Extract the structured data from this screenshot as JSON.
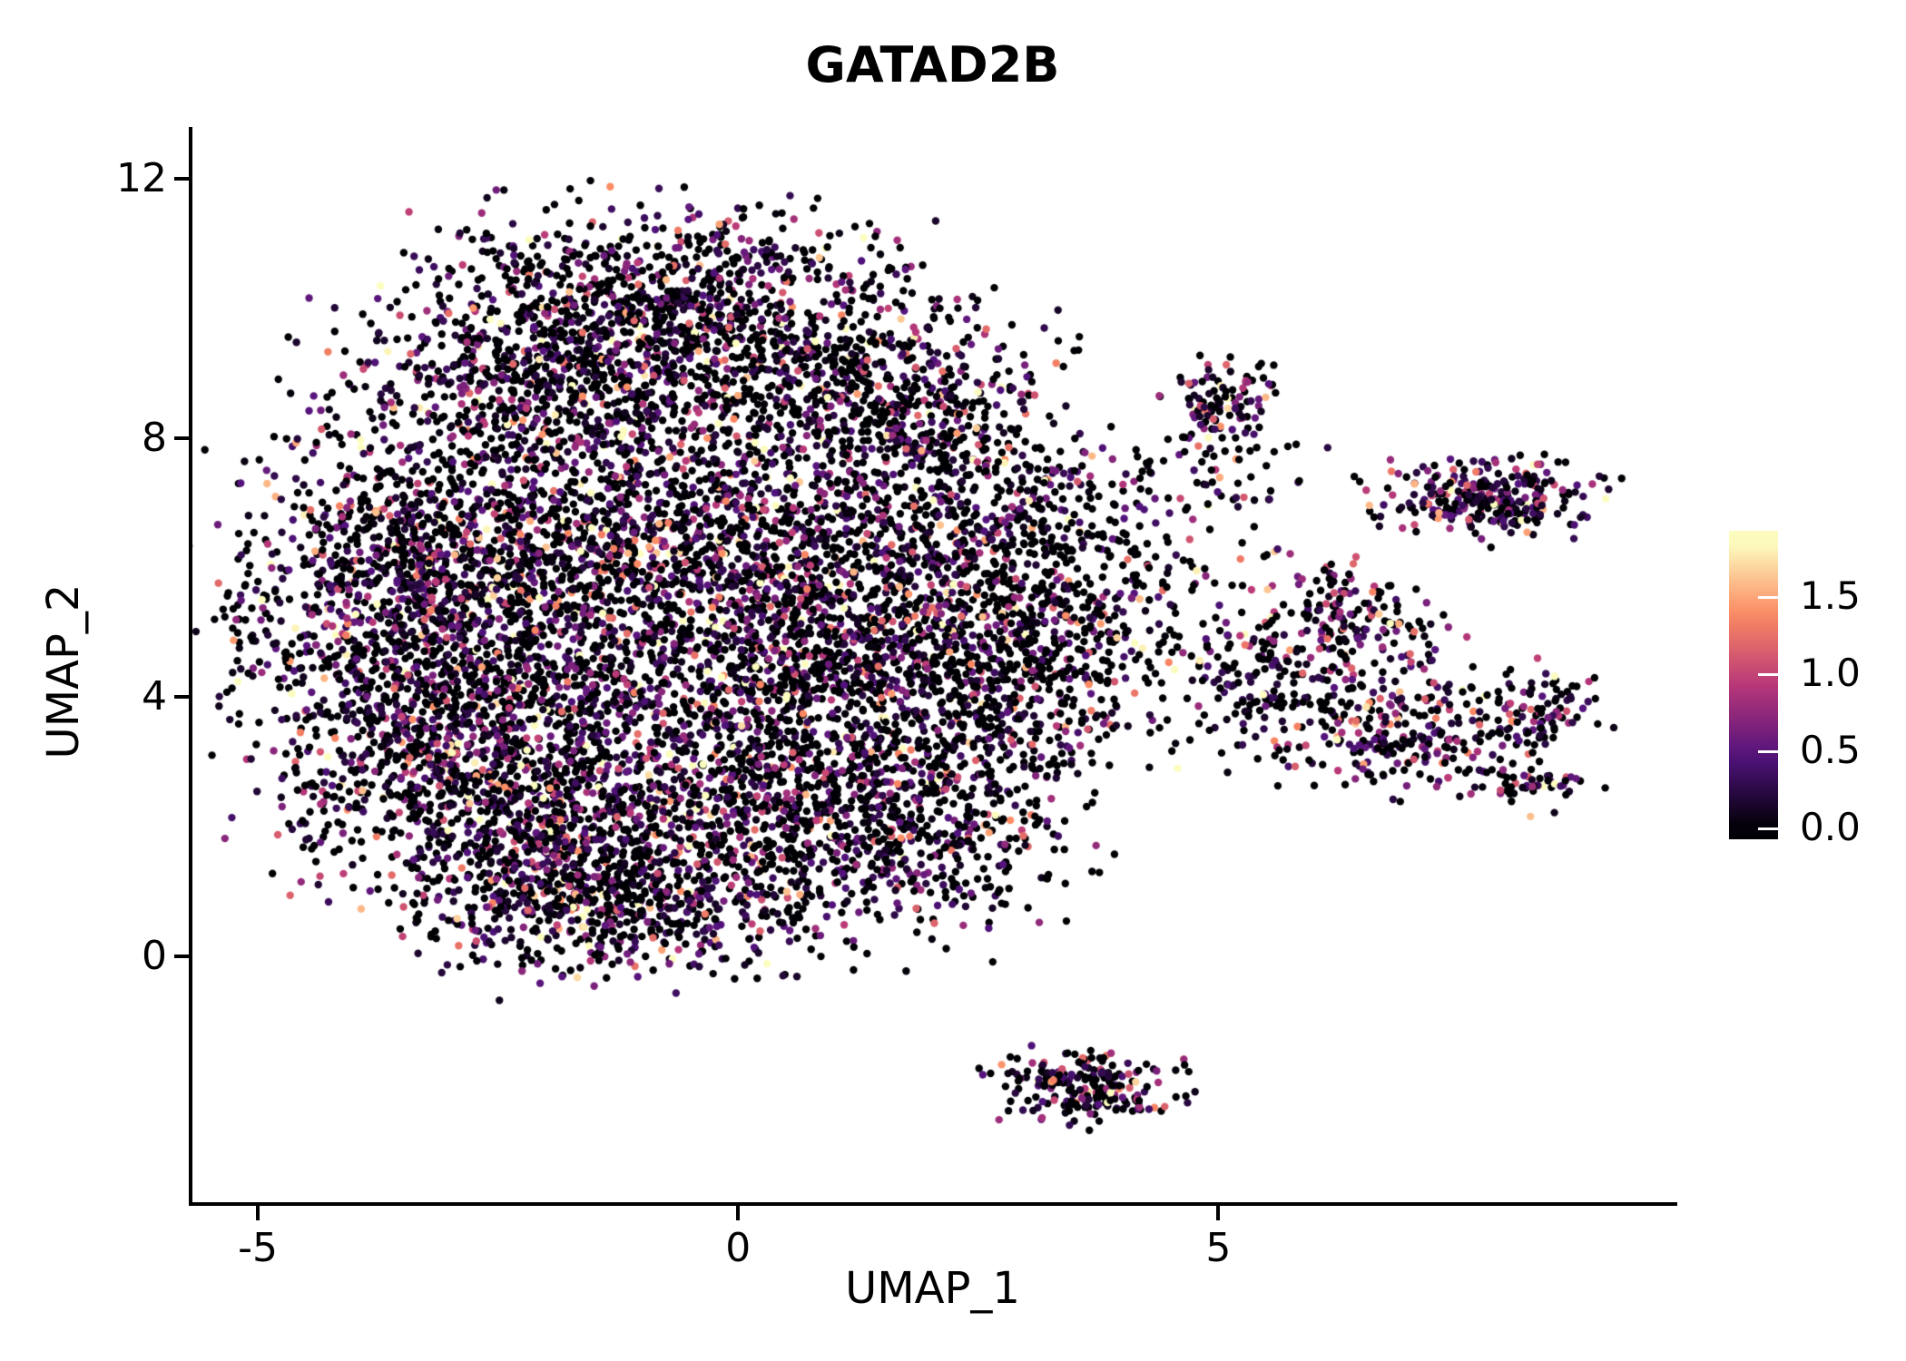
{
  "chart_data": {
    "type": "scatter",
    "title": "GATAD2B",
    "xlabel": "UMAP_1",
    "ylabel": "UMAP_2",
    "xlim": [
      -5.7,
      9.75
    ],
    "ylim": [
      -3.8,
      12.8
    ],
    "grid": false,
    "legend_position": "right",
    "x_ticks": [
      {
        "value": -5,
        "label": "-5"
      },
      {
        "value": 0,
        "label": "0"
      },
      {
        "value": 5,
        "label": "5"
      }
    ],
    "y_ticks": [
      {
        "value": 0,
        "label": "0"
      },
      {
        "value": 4,
        "label": "4"
      },
      {
        "value": 8,
        "label": "8"
      },
      {
        "value": 12,
        "label": "12"
      }
    ],
    "point_radius_px": 4.2,
    "seed": 7,
    "colormap": {
      "name": "magma",
      "stops": [
        {
          "t": 0.0,
          "color": "#000004"
        },
        {
          "t": 0.25,
          "color": "#51127c"
        },
        {
          "t": 0.5,
          "color": "#b73779"
        },
        {
          "t": 0.75,
          "color": "#fc8961"
        },
        {
          "t": 1.0,
          "color": "#fcfdbf"
        }
      ]
    },
    "colorbar": {
      "vmin": -0.07,
      "vmax": 1.93,
      "value_max": 1.85,
      "ticks": [
        {
          "value": 1.5,
          "label": "1.5"
        },
        {
          "value": 1.0,
          "label": "1.0"
        },
        {
          "value": 0.5,
          "label": "0.5"
        },
        {
          "value": 0.0,
          "label": "0.0"
        }
      ]
    },
    "expression": {
      "default_zero_frac": 0.48,
      "exp_scale": 0.55,
      "vmax": 1.85
    },
    "clusters": [
      {
        "name": "top-lobe-a",
        "x": -0.6,
        "y": 10.3,
        "sx": 1.1,
        "sy": 0.65,
        "n": 650,
        "zero_frac": 0.52
      },
      {
        "name": "top-lobe-b",
        "x": -2.1,
        "y": 9.0,
        "sx": 1.0,
        "sy": 0.8,
        "n": 750,
        "zero_frac": 0.45
      },
      {
        "name": "top-lobe-c",
        "x": 0.6,
        "y": 9.0,
        "sx": 1.1,
        "sy": 0.8,
        "n": 700,
        "zero_frac": 0.5
      },
      {
        "name": "upper-right-edge",
        "x": 1.9,
        "y": 8.0,
        "sx": 0.7,
        "sy": 0.8,
        "n": 350,
        "zero_frac": 0.55
      },
      {
        "name": "left-bulge",
        "x": -3.6,
        "y": 5.8,
        "sx": 0.85,
        "sy": 1.1,
        "n": 750,
        "zero_frac": 0.42
      },
      {
        "name": "mid-left",
        "x": -2.0,
        "y": 6.6,
        "sx": 1.1,
        "sy": 0.9,
        "n": 800,
        "zero_frac": 0.45
      },
      {
        "name": "mid-center",
        "x": 0.3,
        "y": 6.3,
        "sx": 1.2,
        "sy": 1.0,
        "n": 800,
        "zero_frac": 0.5
      },
      {
        "name": "left-lower",
        "x": -3.1,
        "y": 3.6,
        "sx": 0.9,
        "sy": 1.0,
        "n": 800,
        "zero_frac": 0.42
      },
      {
        "name": "center",
        "x": -0.9,
        "y": 4.6,
        "sx": 1.3,
        "sy": 1.1,
        "n": 900,
        "zero_frac": 0.45
      },
      {
        "name": "center-right",
        "x": 1.4,
        "y": 4.6,
        "sx": 1.1,
        "sy": 1.1,
        "n": 850,
        "zero_frac": 0.5
      },
      {
        "name": "right-extension",
        "x": 2.7,
        "y": 4.9,
        "sx": 0.8,
        "sy": 1.2,
        "n": 550,
        "zero_frac": 0.55
      },
      {
        "name": "lower-left",
        "x": -2.2,
        "y": 2.0,
        "sx": 1.0,
        "sy": 0.85,
        "n": 700,
        "zero_frac": 0.45
      },
      {
        "name": "lower-center",
        "x": 0.1,
        "y": 2.2,
        "sx": 1.2,
        "sy": 0.95,
        "n": 750,
        "zero_frac": 0.5
      },
      {
        "name": "bottom-lobe",
        "x": -1.3,
        "y": 0.8,
        "sx": 0.95,
        "sy": 0.55,
        "n": 550,
        "zero_frac": 0.42
      },
      {
        "name": "lower-right",
        "x": 1.9,
        "y": 2.0,
        "sx": 0.8,
        "sy": 0.8,
        "n": 450,
        "zero_frac": 0.55
      },
      {
        "name": "bridge-sparse",
        "x": 3.9,
        "y": 5.4,
        "sx": 0.8,
        "sy": 1.1,
        "n": 260,
        "zero_frac": 0.6
      },
      {
        "name": "bridge-upper",
        "x": 3.3,
        "y": 7.0,
        "sx": 0.55,
        "sy": 0.6,
        "n": 110,
        "zero_frac": 0.6
      },
      {
        "name": "sparse-upper-right",
        "x": 4.9,
        "y": 7.7,
        "sx": 0.6,
        "sy": 0.6,
        "n": 70,
        "zero_frac": 0.6
      },
      {
        "name": "top-right-small",
        "x": 5.05,
        "y": 8.6,
        "sx": 0.33,
        "sy": 0.3,
        "n": 95,
        "zero_frac": 0.45
      },
      {
        "name": "far-right",
        "x": 7.8,
        "y": 7.05,
        "sx": 0.55,
        "sy": 0.28,
        "n": 300,
        "zero_frac": 0.3
      },
      {
        "name": "right-mid",
        "x": 6.4,
        "y": 5.2,
        "sx": 0.45,
        "sy": 0.5,
        "n": 170,
        "zero_frac": 0.4
      },
      {
        "name": "right-lower",
        "x": 6.8,
        "y": 3.5,
        "sx": 0.75,
        "sy": 0.5,
        "n": 330,
        "zero_frac": 0.4
      },
      {
        "name": "right-lower-b",
        "x": 8.35,
        "y": 3.85,
        "sx": 0.3,
        "sy": 0.3,
        "n": 80,
        "zero_frac": 0.45
      },
      {
        "name": "right-tail",
        "x": 8.3,
        "y": 2.65,
        "sx": 0.28,
        "sy": 0.13,
        "n": 40,
        "zero_frac": 0.45
      },
      {
        "name": "between-mid",
        "x": 5.4,
        "y": 4.4,
        "sx": 0.45,
        "sy": 0.55,
        "n": 110,
        "zero_frac": 0.55
      },
      {
        "name": "bottom-island",
        "x": 3.6,
        "y": -2.0,
        "sx": 0.45,
        "sy": 0.28,
        "n": 220,
        "zero_frac": 0.38
      }
    ]
  }
}
